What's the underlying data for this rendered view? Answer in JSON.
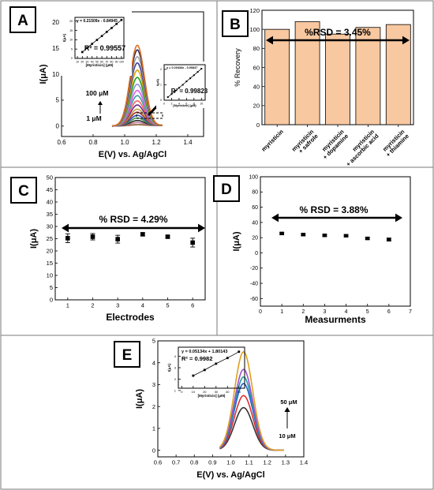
{
  "chart_data": [
    {
      "panel": "A",
      "type": "line",
      "xlabel": "E(V) vs. Ag/AgCl",
      "ylabel": "I(μA)",
      "xlim": [
        0.6,
        1.5
      ],
      "ylim": [
        -2,
        22
      ],
      "xticks": [
        "0.6",
        "0.8",
        "1.0",
        "1.2",
        "1.4"
      ],
      "yticks": [
        "0",
        "5",
        "10",
        "15",
        "20"
      ],
      "peak_potential": 1.08,
      "series_peaks": [
        0.2,
        0.6,
        1.0,
        1.5,
        2.0,
        2.6,
        3.2,
        4.0,
        4.8,
        5.8,
        6.8,
        8.0,
        9.3,
        10.7,
        12.1,
        13.3,
        14.6,
        15.5
      ],
      "series_colors": [
        "#8a5a2a",
        "#c07a9a",
        "#2a2a2a",
        "#4a9a4a",
        "#3050c0",
        "#a03030",
        "#c0a040",
        "#6a2a8a",
        "#ff6060",
        "#40a0a0",
        "#e060e0",
        "#9090e0",
        "#20a020",
        "#e0a000",
        "#4040a0",
        "#a0a0a0",
        "#303060",
        "#e07020"
      ],
      "annotation_top": "100 μM",
      "annotation_bottom": "1 μM",
      "inset_left": {
        "equation": "y = 0.21509x - 0.84945",
        "r2": "R² = 0.99557",
        "xlabel": "[Myristicin] (μM)",
        "ylabel": "I(μA)",
        "xticks": [
          "10",
          "20",
          "30",
          "40",
          "50",
          "60",
          "70",
          "80",
          "90",
          "100"
        ],
        "yticks": [
          "0",
          "5",
          "10",
          "15",
          "20"
        ],
        "x": [
          20,
          30,
          40,
          50,
          60,
          70,
          80,
          90,
          100
        ],
        "y": [
          3.4,
          5.6,
          7.8,
          9.9,
          12.0,
          14.2,
          16.3,
          18.5,
          20.6
        ]
      },
      "inset_right": {
        "equation": "y = 0.20434x - 0.00847",
        "r2": "R² = 0.99823",
        "xlabel": "[Myristicin] (μM)",
        "ylabel": "I(μA)",
        "xticks": [
          "0",
          "2",
          "4",
          "6",
          "8",
          "10"
        ],
        "yticks": [
          "0",
          "1",
          "2"
        ],
        "x": [
          1,
          2,
          3,
          4,
          5,
          6,
          7,
          8,
          9,
          10
        ],
        "y": [
          0.2,
          0.4,
          0.6,
          0.8,
          1.0,
          1.22,
          1.42,
          1.62,
          1.83,
          2.04
        ]
      }
    },
    {
      "panel": "B",
      "type": "bar",
      "ylabel": "% Recovery",
      "ylim": [
        0,
        120
      ],
      "yticks": [
        "0",
        "20",
        "40",
        "60",
        "80",
        "100",
        "120"
      ],
      "categories": [
        "myristicin",
        "myristicin + safrole",
        "myristicin + dopamine",
        "myristicin + ascorbic acid",
        "myristicin + thiamine"
      ],
      "category_lines": [
        [
          "myristicin"
        ],
        [
          "myristicin",
          "+ safrole"
        ],
        [
          "myristicin",
          "+ dopamine"
        ],
        [
          "myristicin",
          "+ ascorbic acid"
        ],
        [
          "myristicin",
          "+ thiamine"
        ]
      ],
      "values": [
        100,
        108,
        95,
        102,
        105
      ],
      "annotation": "%RSD = 3.45%",
      "bar_color": "#f8c8a0"
    },
    {
      "panel": "C",
      "type": "scatter",
      "xlabel": "Electrodes",
      "ylabel": "I(μA)",
      "xlim": [
        0.5,
        6.5
      ],
      "ylim": [
        0,
        50
      ],
      "xticks": [
        "1",
        "2",
        "3",
        "4",
        "5",
        "6"
      ],
      "yticks": [
        "0",
        "5",
        "10",
        "15",
        "20",
        "25",
        "30",
        "35",
        "40",
        "45",
        "50"
      ],
      "x": [
        1,
        2,
        3,
        4,
        5,
        6
      ],
      "y": [
        25.2,
        25.8,
        24.8,
        26.8,
        25.8,
        23.4
      ],
      "err": [
        1.8,
        1.3,
        1.6,
        0.6,
        0.5,
        1.8
      ],
      "annotation": "% RSD = 4.29%"
    },
    {
      "panel": "D",
      "type": "scatter",
      "xlabel": "Measurments",
      "ylabel": "I(μA)",
      "xlim": [
        0,
        7
      ],
      "ylim": [
        -70,
        100
      ],
      "xticks": [
        "0",
        "1",
        "2",
        "3",
        "4",
        "5",
        "6",
        "7"
      ],
      "yticks": [
        "-60",
        "-40",
        "-20",
        "0",
        "20",
        "40",
        "60",
        "80",
        "100"
      ],
      "x": [
        1,
        2,
        3,
        4,
        5,
        6
      ],
      "y": [
        25.5,
        24.0,
        23.0,
        22.5,
        19.0,
        17.5
      ],
      "err": [
        1.5,
        1.5,
        1.2,
        1.2,
        1.5,
        2.0
      ],
      "annotation": "% RSD = 3.88%"
    },
    {
      "panel": "E",
      "type": "line",
      "xlabel": "E(V) vs. Ag/AgCl",
      "ylabel": "I(μA)",
      "xlim": [
        0.6,
        1.4
      ],
      "ylim": [
        -0.3,
        5
      ],
      "xticks": [
        "0.6",
        "0.7",
        "0.8",
        "0.9",
        "1.0",
        "1.1",
        "1.2",
        "1.3",
        "1.4"
      ],
      "yticks": [
        "0",
        "1",
        "2",
        "3",
        "4",
        "5"
      ],
      "peak_potential": 1.07,
      "series_peaks": [
        1.95,
        2.5,
        3.05,
        3.35,
        3.7,
        4.5
      ],
      "series_colors": [
        "#333333",
        "#e03030",
        "#2060d0",
        "#20a0a0",
        "#a050d0",
        "#e0a020"
      ],
      "annotation_top": "50 μM",
      "annotation_bottom": "10 μM",
      "inset": {
        "equation": "y = 0.05134x + 1.80143",
        "r2": "R² = 0.9982",
        "xlabel": "[Myristicin] (μM)",
        "ylabel": "I(μA)",
        "xticks": [
          "0",
          "10",
          "20",
          "30",
          "40",
          "50"
        ],
        "yticks": [
          "1",
          "2",
          "3",
          "4"
        ],
        "x": [
          10,
          20,
          30,
          40,
          50
        ],
        "y": [
          2.3,
          2.8,
          3.35,
          3.85,
          4.4
        ]
      }
    }
  ],
  "panel_labels": [
    "A",
    "B",
    "C",
    "D",
    "E"
  ]
}
